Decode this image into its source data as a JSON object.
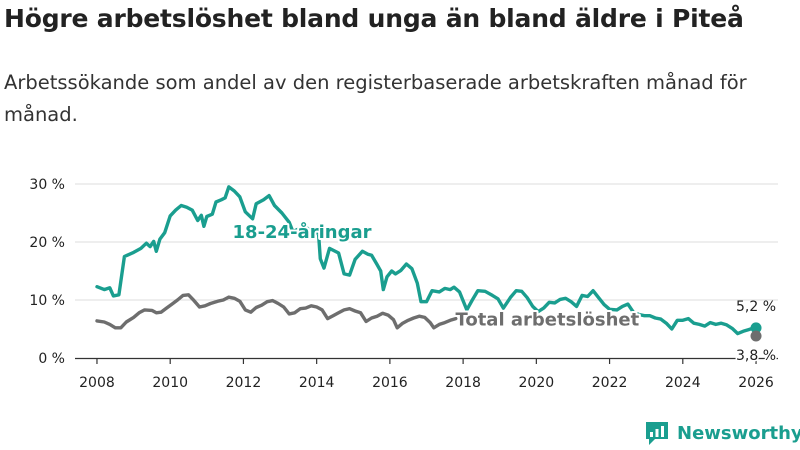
{
  "page": {
    "title": "Högre arbetslöshet bland unga än bland äldre i Piteå",
    "subtitle": "Arbetssökande som andel av den registerbaserade arbetskraften månad för månad.",
    "brand": "Newsworthy"
  },
  "colors": {
    "youth": "#1a9e8f",
    "total": "#6e6e6e",
    "grid": "#dddddd",
    "axis": "#333333",
    "text": "#222222"
  },
  "chart_data": {
    "type": "line",
    "title": "Högre arbetslöshet bland unga än bland äldre i Piteå",
    "subtitle": "Arbetssökande som andel av den registerbaserade arbetskraften månad för månad.",
    "xlabel": "",
    "ylabel": "",
    "xlim": [
      2007.4,
      2026.6
    ],
    "ylim": [
      0,
      30
    ],
    "x_ticks": [
      2008,
      2010,
      2012,
      2014,
      2016,
      2018,
      2020,
      2022,
      2024,
      2026
    ],
    "x_tick_labels": [
      "2008",
      "2010",
      "2012",
      "2014",
      "2016",
      "2018",
      "2020",
      "2022",
      "2024",
      "2026"
    ],
    "y_ticks": [
      0,
      10,
      20,
      30
    ],
    "y_tick_labels": [
      "0 %",
      "10 %",
      "20 %",
      "30 %"
    ],
    "grid": true,
    "series": [
      {
        "name": "18-24-åringar",
        "label": "18-24-åringar",
        "end_label": "5,2 %",
        "color": "#1a9e8f",
        "points": [
          [
            2008.0,
            12.3
          ],
          [
            2008.2,
            11.8
          ],
          [
            2008.35,
            12.1
          ],
          [
            2008.45,
            10.7
          ],
          [
            2008.6,
            10.9
          ],
          [
            2008.75,
            17.5
          ],
          [
            2009.0,
            18.2
          ],
          [
            2009.2,
            18.9
          ],
          [
            2009.35,
            19.8
          ],
          [
            2009.45,
            19.2
          ],
          [
            2009.55,
            20.1
          ],
          [
            2009.62,
            18.4
          ],
          [
            2009.72,
            20.5
          ],
          [
            2009.85,
            21.6
          ],
          [
            2010.0,
            24.5
          ],
          [
            2010.15,
            25.5
          ],
          [
            2010.3,
            26.3
          ],
          [
            2010.45,
            26.0
          ],
          [
            2010.6,
            25.5
          ],
          [
            2010.75,
            23.7
          ],
          [
            2010.85,
            24.6
          ],
          [
            2010.92,
            22.7
          ],
          [
            2011.0,
            24.4
          ],
          [
            2011.15,
            24.8
          ],
          [
            2011.25,
            26.9
          ],
          [
            2011.4,
            27.3
          ],
          [
            2011.5,
            27.6
          ],
          [
            2011.6,
            29.5
          ],
          [
            2011.75,
            28.8
          ],
          [
            2011.9,
            27.8
          ],
          [
            2012.05,
            25.2
          ],
          [
            2012.25,
            24.0
          ],
          [
            2012.35,
            26.6
          ],
          [
            2012.55,
            27.3
          ],
          [
            2012.7,
            28.0
          ],
          [
            2012.85,
            26.3
          ],
          [
            2013.05,
            25.0
          ],
          [
            2013.25,
            23.4
          ],
          [
            2013.35,
            21.8
          ],
          [
            2013.55,
            22.4
          ],
          [
            2013.7,
            22.6
          ],
          [
            2013.85,
            21.8
          ],
          [
            2014.05,
            21.5
          ],
          [
            2014.1,
            17.1
          ],
          [
            2014.2,
            15.5
          ],
          [
            2014.35,
            18.9
          ],
          [
            2014.6,
            18.1
          ],
          [
            2014.75,
            14.5
          ],
          [
            2014.9,
            14.3
          ],
          [
            2015.05,
            17.0
          ],
          [
            2015.25,
            18.4
          ],
          [
            2015.4,
            17.9
          ],
          [
            2015.5,
            17.7
          ],
          [
            2015.65,
            16.1
          ],
          [
            2015.75,
            15.0
          ],
          [
            2015.82,
            11.8
          ],
          [
            2015.92,
            14.0
          ],
          [
            2016.05,
            15.0
          ],
          [
            2016.15,
            14.5
          ],
          [
            2016.3,
            15.1
          ],
          [
            2016.45,
            16.2
          ],
          [
            2016.6,
            15.4
          ],
          [
            2016.75,
            12.9
          ],
          [
            2016.85,
            9.7
          ],
          [
            2017.0,
            9.7
          ],
          [
            2017.15,
            11.6
          ],
          [
            2017.35,
            11.4
          ],
          [
            2017.5,
            12.0
          ],
          [
            2017.65,
            11.8
          ],
          [
            2017.75,
            12.2
          ],
          [
            2017.9,
            11.4
          ],
          [
            2018.1,
            8.3
          ],
          [
            2018.25,
            10.0
          ],
          [
            2018.4,
            11.6
          ],
          [
            2018.6,
            11.5
          ],
          [
            2018.8,
            10.8
          ],
          [
            2018.95,
            10.2
          ],
          [
            2019.1,
            8.6
          ],
          [
            2019.3,
            10.5
          ],
          [
            2019.45,
            11.6
          ],
          [
            2019.6,
            11.5
          ],
          [
            2019.75,
            10.4
          ],
          [
            2019.9,
            8.9
          ],
          [
            2020.05,
            8.0
          ],
          [
            2020.2,
            8.6
          ],
          [
            2020.35,
            9.6
          ],
          [
            2020.5,
            9.5
          ],
          [
            2020.65,
            10.1
          ],
          [
            2020.8,
            10.3
          ],
          [
            2020.95,
            9.7
          ],
          [
            2021.1,
            8.9
          ],
          [
            2021.25,
            10.8
          ],
          [
            2021.4,
            10.6
          ],
          [
            2021.55,
            11.6
          ],
          [
            2021.7,
            10.4
          ],
          [
            2021.85,
            9.2
          ],
          [
            2022.0,
            8.4
          ],
          [
            2022.2,
            8.3
          ],
          [
            2022.35,
            8.9
          ],
          [
            2022.5,
            9.3
          ],
          [
            2022.65,
            7.9
          ],
          [
            2022.8,
            7.5
          ],
          [
            2022.95,
            7.3
          ],
          [
            2023.1,
            7.3
          ],
          [
            2023.25,
            6.9
          ],
          [
            2023.4,
            6.7
          ],
          [
            2023.55,
            6.0
          ],
          [
            2023.7,
            5.0
          ],
          [
            2023.85,
            6.5
          ],
          [
            2024.0,
            6.5
          ],
          [
            2024.15,
            6.8
          ],
          [
            2024.3,
            6.0
          ],
          [
            2024.45,
            5.8
          ],
          [
            2024.6,
            5.5
          ],
          [
            2024.75,
            6.1
          ],
          [
            2024.9,
            5.8
          ],
          [
            2025.05,
            6.0
          ],
          [
            2025.2,
            5.7
          ],
          [
            2025.35,
            5.1
          ],
          [
            2025.5,
            4.2
          ],
          [
            2025.65,
            4.6
          ],
          [
            2025.8,
            4.9
          ],
          [
            2025.95,
            5.2
          ],
          [
            2026.0,
            5.2
          ]
        ]
      },
      {
        "name": "Total arbetslöshet",
        "label": "Total arbetslöshet",
        "end_label": "3,8 %",
        "color": "#6e6e6e",
        "points": [
          [
            2008.0,
            6.4
          ],
          [
            2008.2,
            6.2
          ],
          [
            2008.35,
            5.8
          ],
          [
            2008.5,
            5.2
          ],
          [
            2008.65,
            5.2
          ],
          [
            2008.8,
            6.2
          ],
          [
            2009.0,
            7.0
          ],
          [
            2009.15,
            7.8
          ],
          [
            2009.3,
            8.3
          ],
          [
            2009.5,
            8.2
          ],
          [
            2009.62,
            7.8
          ],
          [
            2009.75,
            7.9
          ],
          [
            2009.9,
            8.6
          ],
          [
            2010.05,
            9.3
          ],
          [
            2010.2,
            10.0
          ],
          [
            2010.35,
            10.8
          ],
          [
            2010.5,
            10.9
          ],
          [
            2010.65,
            9.9
          ],
          [
            2010.8,
            8.8
          ],
          [
            2010.95,
            9.0
          ],
          [
            2011.1,
            9.4
          ],
          [
            2011.3,
            9.8
          ],
          [
            2011.45,
            10.0
          ],
          [
            2011.6,
            10.5
          ],
          [
            2011.75,
            10.3
          ],
          [
            2011.9,
            9.8
          ],
          [
            2012.05,
            8.3
          ],
          [
            2012.2,
            7.9
          ],
          [
            2012.35,
            8.7
          ],
          [
            2012.5,
            9.1
          ],
          [
            2012.65,
            9.7
          ],
          [
            2012.8,
            9.9
          ],
          [
            2012.95,
            9.4
          ],
          [
            2013.1,
            8.8
          ],
          [
            2013.25,
            7.6
          ],
          [
            2013.4,
            7.8
          ],
          [
            2013.55,
            8.5
          ],
          [
            2013.7,
            8.6
          ],
          [
            2013.85,
            9.0
          ],
          [
            2014.0,
            8.8
          ],
          [
            2014.15,
            8.3
          ],
          [
            2014.3,
            6.8
          ],
          [
            2014.45,
            7.3
          ],
          [
            2014.6,
            7.8
          ],
          [
            2014.75,
            8.3
          ],
          [
            2014.9,
            8.5
          ],
          [
            2015.05,
            8.1
          ],
          [
            2015.2,
            7.8
          ],
          [
            2015.35,
            6.3
          ],
          [
            2015.5,
            6.9
          ],
          [
            2015.65,
            7.2
          ],
          [
            2015.8,
            7.7
          ],
          [
            2015.95,
            7.4
          ],
          [
            2016.1,
            6.6
          ],
          [
            2016.2,
            5.2
          ],
          [
            2016.35,
            6.0
          ],
          [
            2016.5,
            6.5
          ],
          [
            2016.65,
            6.9
          ],
          [
            2016.8,
            7.2
          ],
          [
            2016.95,
            7.0
          ],
          [
            2017.1,
            6.1
          ],
          [
            2017.2,
            5.2
          ],
          [
            2017.35,
            5.8
          ],
          [
            2017.5,
            6.1
          ],
          [
            2017.65,
            6.5
          ],
          [
            2017.8,
            6.8
          ]
        ]
      }
    ],
    "annotations": [
      {
        "text": "18-24-åringar",
        "x": 2013.6,
        "y": 20.7,
        "series": "18-24-åringar"
      },
      {
        "text": "Total arbetslöshet",
        "x": 2020.3,
        "y": 5.6,
        "series": "Total arbetslöshet"
      }
    ]
  }
}
